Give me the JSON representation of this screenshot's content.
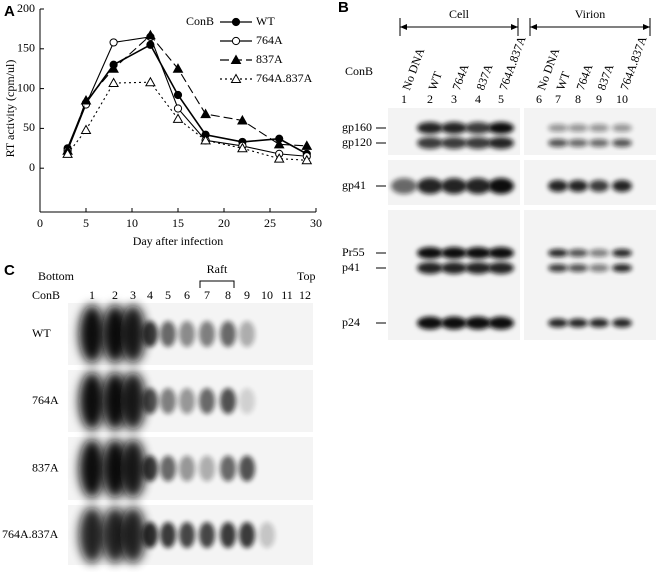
{
  "chart_data": {
    "type": "line",
    "x_label": "Day after infection",
    "y_label": "RT activity (cpm/ul)",
    "legend_title": "ConB",
    "legend_position": "upper right",
    "x": [
      3,
      5,
      8,
      12,
      15,
      18,
      22,
      26,
      29
    ],
    "xlim": [
      0,
      30
    ],
    "xticks": [
      0,
      5,
      10,
      15,
      20,
      25,
      30
    ],
    "ylim": [
      -50,
      200
    ],
    "yticks": [
      0,
      50,
      100,
      150,
      200
    ],
    "series": [
      {
        "name": "WT",
        "color": "#000000",
        "marker": "filled-circle",
        "line_style": "solid",
        "values": [
          25,
          82,
          130,
          155,
          92,
          42,
          33,
          37,
          18
        ]
      },
      {
        "name": "764A",
        "color": "#000000",
        "marker": "open-circle",
        "line_style": "solid",
        "values": [
          22,
          80,
          158,
          165,
          75,
          35,
          28,
          18,
          15
        ]
      },
      {
        "name": "837A",
        "color": "#000000",
        "marker": "filled-triangle",
        "line_style": "dashed",
        "values": [
          22,
          85,
          125,
          167,
          125,
          68,
          60,
          30,
          28
        ]
      },
      {
        "name": "764A.837A",
        "color": "#000000",
        "marker": "open-triangle",
        "line_style": "dotted",
        "values": [
          18,
          48,
          107,
          108,
          62,
          35,
          25,
          12,
          10
        ]
      }
    ]
  },
  "panel_labels": [
    "A",
    "B",
    "C"
  ],
  "blot_b": {
    "groups": [
      "Cell",
      "Virion"
    ],
    "row_title": "ConB",
    "lanes": [
      "No DNA",
      "WT",
      "764A",
      "837A",
      "764A.837A",
      "No DNA",
      "WT",
      "764A",
      "837A",
      "764A.837A"
    ],
    "lane_numbers": [
      1,
      2,
      3,
      4,
      5,
      6,
      7,
      8,
      9,
      10
    ],
    "bands": [
      "gp160",
      "gp120",
      "gp41",
      "Pr55",
      "p41",
      "p24"
    ]
  },
  "blot_c": {
    "bottom": "Bottom",
    "raft": "Raft",
    "top": "Top",
    "row_title": "ConB",
    "fractions": [
      1,
      2,
      3,
      4,
      5,
      6,
      7,
      8,
      9,
      10,
      11,
      12
    ],
    "rows": [
      "WT",
      "764A",
      "837A",
      "764A.837A"
    ]
  }
}
